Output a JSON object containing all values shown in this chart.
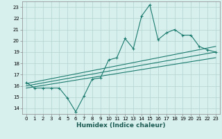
{
  "xlabel": "Humidex (Indice chaleur)",
  "ylabel": "",
  "background_color": "#d8f0ed",
  "grid_color": "#b8d8d4",
  "line_color": "#1a7a6e",
  "xlim": [
    -0.5,
    23.5
  ],
  "ylim": [
    13.5,
    23.5
  ],
  "xticks": [
    0,
    1,
    2,
    3,
    4,
    5,
    6,
    7,
    8,
    9,
    10,
    11,
    12,
    13,
    14,
    15,
    16,
    17,
    18,
    19,
    20,
    21,
    22,
    23
  ],
  "yticks": [
    14,
    15,
    16,
    17,
    18,
    19,
    20,
    21,
    22,
    23
  ],
  "series1_x": [
    0,
    1,
    2,
    3,
    4,
    5,
    6,
    7,
    8,
    9,
    10,
    11,
    12,
    13,
    14,
    15,
    16,
    17,
    18,
    19,
    20,
    21,
    22,
    23
  ],
  "series1_y": [
    16.3,
    15.8,
    15.8,
    15.8,
    15.8,
    14.9,
    13.7,
    15.1,
    16.6,
    16.7,
    18.3,
    18.5,
    20.2,
    19.3,
    22.2,
    23.2,
    20.1,
    20.7,
    21.0,
    20.5,
    20.5,
    19.5,
    19.2,
    19.0
  ],
  "series2_x": [
    0,
    23
  ],
  "series2_y": [
    16.0,
    19.0
  ],
  "series3_x": [
    0,
    23
  ],
  "series3_y": [
    15.8,
    18.5
  ],
  "series4_x": [
    0,
    23
  ],
  "series4_y": [
    16.2,
    19.5
  ]
}
